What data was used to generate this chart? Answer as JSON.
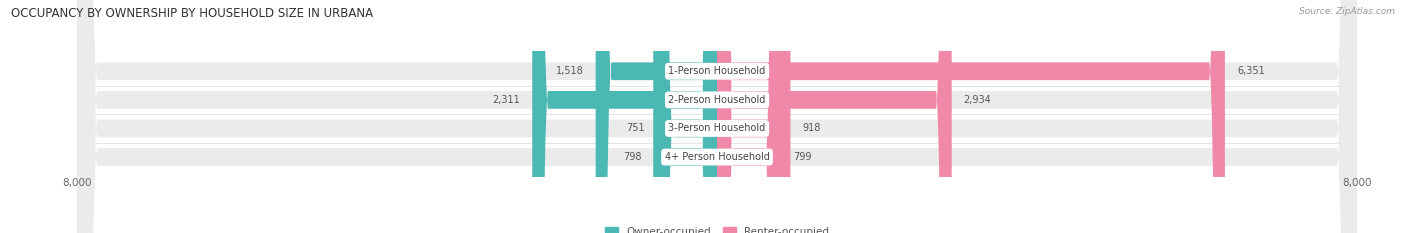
{
  "title": "OCCUPANCY BY OWNERSHIP BY HOUSEHOLD SIZE IN URBANA",
  "source": "Source: ZipAtlas.com",
  "categories": [
    "1-Person Household",
    "2-Person Household",
    "3-Person Household",
    "4+ Person Household"
  ],
  "owner_values": [
    1518,
    2311,
    751,
    798
  ],
  "renter_values": [
    6351,
    2934,
    918,
    799
  ],
  "max_scale": 8000,
  "owner_color": "#4bb8b4",
  "renter_color": "#f088a8",
  "track_color": "#ebebeb",
  "title_fontsize": 8.5,
  "source_fontsize": 6.5,
  "bar_label_fontsize": 7,
  "axis_label_fontsize": 7.5,
  "legend_fontsize": 7.5,
  "category_fontsize": 7
}
